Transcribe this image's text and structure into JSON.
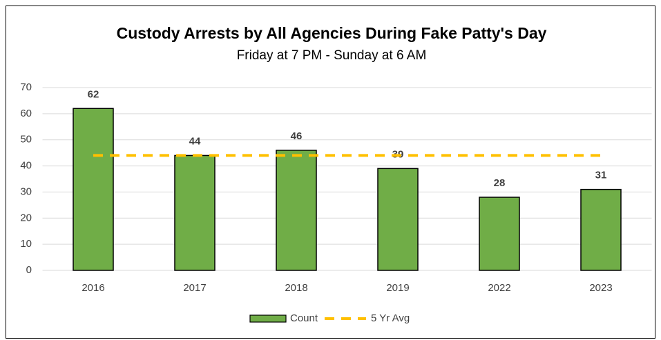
{
  "chart_data": {
    "type": "bar",
    "title": "Custody Arrests by All Agencies During Fake Patty's Day",
    "subtitle": "Friday at 7 PM - Sunday at 6 AM",
    "categories": [
      "2016",
      "2017",
      "2018",
      "2019",
      "2022",
      "2023"
    ],
    "series": [
      {
        "name": "Count",
        "type": "bar",
        "color": "#70ad47",
        "values": [
          62,
          44,
          46,
          39,
          28,
          31
        ]
      },
      {
        "name": "5 Yr Avg",
        "type": "line",
        "color": "#ffc000",
        "values": [
          44,
          44,
          44,
          44,
          44,
          44
        ]
      }
    ],
    "ylim": [
      0,
      70
    ],
    "yticks": [
      0,
      10,
      20,
      30,
      40,
      50,
      60,
      70
    ],
    "grid": true,
    "legend": "bottom"
  }
}
